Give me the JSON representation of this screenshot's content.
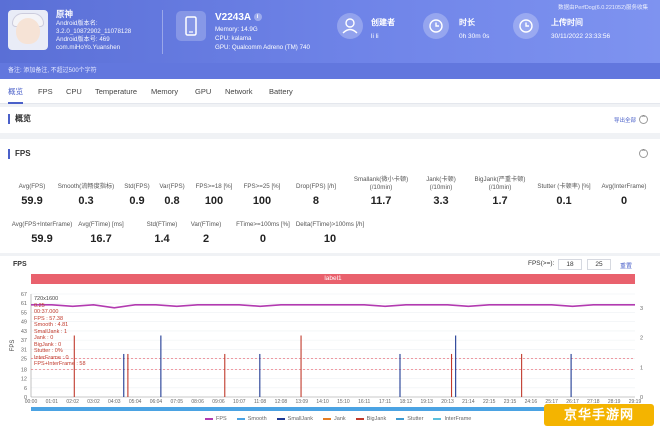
{
  "header": {
    "top_link": "数据由PerfDog(6.0.221052)服务收集",
    "app": {
      "name": "原神",
      "lines": [
        "Android版本名:",
        "3.2.0_10872902_11078128",
        "Android版本号: 469",
        "com.miHoYo.Yuanshen"
      ]
    },
    "device": {
      "model": "V2243A",
      "model_badge": "i",
      "memory": "Memory: 14.9G",
      "cpu": "CPU: kalama",
      "gpu": "GPU: Qualcomm Adreno (TM) 740"
    },
    "creator": {
      "label": "创建者",
      "value": "li li"
    },
    "duration": {
      "label": "时长",
      "value": "0h 30m 0s"
    },
    "upload": {
      "label": "上传时间",
      "value": "30/11/2022 23:33:56"
    }
  },
  "subbar": {
    "text": "备注: 添加备注, 不超过500个字符"
  },
  "tabs": [
    "概览",
    "FPS",
    "CPU",
    "Temperature",
    "Memory",
    "GPU",
    "Network",
    "Battery"
  ],
  "overview": {
    "title": "概览",
    "export_label": "导出全部"
  },
  "fps_section": {
    "title": "FPS",
    "expand_icon": "⌃",
    "row1": [
      {
        "label": "Avg(FPS)",
        "value": "59.9"
      },
      {
        "label": "Smooth(流畅度指标)",
        "value": "0.3"
      },
      {
        "label": "Std(FPS)",
        "value": "0.9"
      },
      {
        "label": "Var(FPS)",
        "value": "0.8"
      },
      {
        "label": "FPS>=18 [%]",
        "value": "100"
      },
      {
        "label": "FPS>=25 [%]",
        "value": "100"
      },
      {
        "label": "Drop(FPS) [/h]",
        "value": "8"
      },
      {
        "label_top": "Smallank(微小卡顿)",
        "label": "(/10min)",
        "value": "11.7"
      },
      {
        "label_top": "Jank(卡顿)",
        "label": "(/10min)",
        "value": "3.3"
      },
      {
        "label_top": "BigJank(严重卡顿)",
        "label": "(/10min)",
        "value": "1.7"
      },
      {
        "label": "Stutter (卡顿率) [%]",
        "value": "0.1"
      },
      {
        "label": "Avg(InterFrame)",
        "value": "0"
      }
    ],
    "row2": [
      {
        "label": "Avg(FPS+InterFrame)",
        "value": "59.9"
      },
      {
        "label": "Avg(FTime) [ms]",
        "value": "16.7"
      },
      {
        "label": "Std(FTime)",
        "value": "1.4"
      },
      {
        "label": "Var(FTime)",
        "value": "2"
      },
      {
        "label": "FTime>=100ms [%]",
        "value": "0"
      },
      {
        "label": "Delta(FTime)>100ms [/h]",
        "value": "10"
      }
    ]
  },
  "chart": {
    "heading": "FPS",
    "range_label": "FPS(>=):",
    "range_low": "18",
    "range_high": "25",
    "reset_label": "重置",
    "label_bar": "label1",
    "tooltip": [
      "720x1600",
      "0.25",
      "00:37.000",
      "FPS        : 57.38",
      "Smooth     : 4.81",
      "SmallJank  : 1",
      "Jank       : 0",
      "BigJank    : 0",
      "Stutter    : 0%",
      "InterFrame : 0",
      "FPS+InterFrame : 58"
    ],
    "watermark": "京华手游网",
    "legend": [
      {
        "name": "FPS",
        "color": "#b23bb0"
      },
      {
        "name": "Smooth",
        "color": "#4ba3e3"
      },
      {
        "name": "SmallJank",
        "color": "#1f3a93"
      },
      {
        "name": "Jank",
        "color": "#e67e22"
      },
      {
        "name": "BigJank",
        "color": "#c0392b"
      },
      {
        "name": "Stutter",
        "color": "#3d9ad1"
      },
      {
        "name": "InterFrame",
        "color": "#5bc0de"
      }
    ]
  },
  "chart_data": {
    "type": "line",
    "title": "FPS",
    "ylabel": "FPS",
    "ylim": [
      0,
      67
    ],
    "y_ticks": [
      "67",
      "61",
      "55",
      "49",
      "43",
      "37",
      "31",
      "25",
      "18",
      "12",
      "6",
      "0"
    ],
    "y2_ticks": [
      "3",
      "2",
      "1",
      "0"
    ],
    "x_ticks": [
      "00:00",
      "01:01",
      "02:02",
      "03:02",
      "04:03",
      "05:04",
      "06:04",
      "07:05",
      "08:06",
      "09:06",
      "10:07",
      "11:08",
      "12:08",
      "13:09",
      "14:10",
      "15:10",
      "16:11",
      "17:11",
      "18:12",
      "19:13",
      "20:13",
      "21:14",
      "22:15",
      "23:15",
      "24:16",
      "25:17",
      "26:17",
      "27:18",
      "28:19",
      "29:19"
    ],
    "series": [
      {
        "name": "FPS",
        "values": [
          60,
          60,
          59,
          60,
          58,
          60,
          60,
          59,
          60,
          60,
          60,
          59,
          60,
          60,
          60,
          60,
          60,
          59,
          60,
          60,
          60,
          59,
          60,
          60,
          60,
          60,
          59,
          60,
          60,
          60
        ]
      }
    ],
    "jank_spikes_minutes": [
      2.1,
      4.5,
      4.7,
      6.3,
      9.4,
      11.1,
      13.1,
      17.9,
      20.4,
      20.6,
      23.8,
      26.2
    ]
  }
}
